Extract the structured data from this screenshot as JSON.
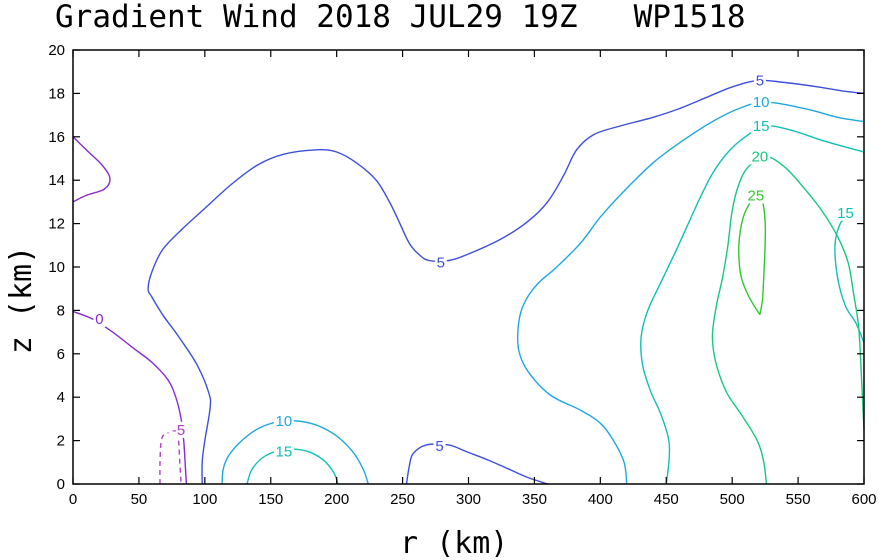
{
  "chart_data": {
    "type": "contour",
    "title": "Gradient Wind 2018 JUL29 19Z   WP1518",
    "xlabel": "r (km)",
    "ylabel": "z (km)",
    "xlim": [
      0,
      600
    ],
    "ylim": [
      0,
      20
    ],
    "xticks": [
      0,
      50,
      100,
      150,
      200,
      250,
      300,
      350,
      400,
      450,
      500,
      550,
      600
    ],
    "yticks": [
      0,
      2,
      4,
      6,
      8,
      10,
      12,
      14,
      16,
      18,
      20
    ],
    "levels": [
      {
        "value": -5,
        "label": "-5",
        "color": "#b040c8",
        "dashed": true
      },
      {
        "value": 0,
        "label": "0",
        "color": "#8a2bd0",
        "dashed": false
      },
      {
        "value": 5,
        "label": "5",
        "color": "#3c50dc",
        "dashed": false
      },
      {
        "value": 10,
        "label": "10",
        "color": "#1ea8e0",
        "dashed": false
      },
      {
        "value": 15,
        "label": "15",
        "color": "#10c0b8",
        "dashed": false
      },
      {
        "value": 20,
        "label": "20",
        "color": "#18c880",
        "dashed": false
      },
      {
        "value": 25,
        "label": "25",
        "color": "#30c830",
        "dashed": false
      }
    ],
    "contours": [
      {
        "level": 0,
        "points": [
          [
            0,
            16
          ],
          [
            10,
            15.4
          ],
          [
            22,
            14.7
          ],
          [
            28,
            14.1
          ],
          [
            24,
            13.6
          ],
          [
            10,
            13.3
          ],
          [
            0,
            13
          ]
        ]
      },
      {
        "level": 0,
        "points": [
          [
            0,
            7.95
          ],
          [
            15,
            7.6
          ],
          [
            30,
            7.0
          ],
          [
            45,
            6.3
          ],
          [
            60,
            5.6
          ],
          [
            72,
            4.8
          ],
          [
            78,
            4.0
          ],
          [
            82,
            3.0
          ],
          [
            84,
            2.0
          ],
          [
            85,
            1.0
          ],
          [
            86,
            0
          ]
        ]
      },
      {
        "level": -5,
        "points": [
          [
            66,
            0
          ],
          [
            66,
            1
          ],
          [
            67,
            2.0
          ],
          [
            70,
            2.3
          ],
          [
            78,
            2.4
          ],
          [
            80,
            2.0
          ],
          [
            81,
            1.0
          ],
          [
            82,
            0
          ]
        ]
      },
      {
        "level": 5,
        "points": [
          [
            98,
            0
          ],
          [
            98,
            1
          ],
          [
            100,
            2.0
          ],
          [
            104,
            3.5
          ],
          [
            103,
            4.2
          ],
          [
            94,
            5.5
          ],
          [
            80,
            6.8
          ],
          [
            68,
            7.8
          ],
          [
            60,
            8.6
          ],
          [
            57,
            9.0
          ],
          [
            60,
            9.8
          ],
          [
            68,
            10.8
          ],
          [
            82,
            11.7
          ],
          [
            100,
            12.7
          ],
          [
            120,
            13.8
          ],
          [
            140,
            14.7
          ],
          [
            160,
            15.2
          ],
          [
            185,
            15.4
          ],
          [
            200,
            15.3
          ],
          [
            215,
            14.8
          ],
          [
            230,
            14.0
          ],
          [
            240,
            13.0
          ],
          [
            248,
            12.0
          ],
          [
            255,
            11.1
          ],
          [
            262,
            10.6
          ],
          [
            270,
            10.3
          ],
          [
            285,
            10.3
          ],
          [
            300,
            10.6
          ],
          [
            325,
            11.3
          ],
          [
            345,
            12.1
          ],
          [
            360,
            13.0
          ],
          [
            372,
            14.2
          ],
          [
            382,
            15.4
          ],
          [
            395,
            16.1
          ],
          [
            415,
            16.5
          ],
          [
            440,
            16.9
          ],
          [
            460,
            17.3
          ],
          [
            480,
            17.8
          ],
          [
            500,
            18.3
          ],
          [
            520,
            18.6
          ],
          [
            540,
            18.5
          ],
          [
            565,
            18.3
          ],
          [
            585,
            18.1
          ],
          [
            600,
            18.0
          ]
        ]
      },
      {
        "level": 5,
        "points": [
          [
            253,
            0
          ],
          [
            255,
            0.8
          ],
          [
            258,
            1.4
          ],
          [
            268,
            1.8
          ],
          [
            285,
            1.8
          ],
          [
            298,
            1.5
          ],
          [
            315,
            1.1
          ],
          [
            330,
            0.7
          ],
          [
            345,
            0.3
          ],
          [
            360,
            0
          ]
        ]
      },
      {
        "level": 10,
        "points": [
          [
            420,
            0
          ],
          [
            418,
            1
          ],
          [
            410,
            2
          ],
          [
            400,
            2.8
          ],
          [
            385,
            3.4
          ],
          [
            362,
            4.1
          ],
          [
            345,
            5.2
          ],
          [
            338,
            6.2
          ],
          [
            338,
            7.4
          ],
          [
            342,
            8.3
          ],
          [
            352,
            9.2
          ],
          [
            367,
            10.0
          ],
          [
            385,
            11.1
          ],
          [
            400,
            12.3
          ],
          [
            418,
            13.5
          ],
          [
            440,
            14.8
          ],
          [
            462,
            15.8
          ],
          [
            485,
            16.7
          ],
          [
            505,
            17.3
          ],
          [
            525,
            17.6
          ],
          [
            555,
            17.3
          ],
          [
            580,
            16.9
          ],
          [
            600,
            16.7
          ]
        ]
      },
      {
        "level": 10,
        "points": [
          [
            113,
            0
          ],
          [
            114,
            0.7
          ],
          [
            118,
            1.3
          ],
          [
            128,
            2.0
          ],
          [
            142,
            2.6
          ],
          [
            160,
            2.9
          ],
          [
            180,
            2.8
          ],
          [
            198,
            2.3
          ],
          [
            212,
            1.5
          ],
          [
            220,
            0.7
          ],
          [
            224,
            0
          ]
        ]
      },
      {
        "level": 15,
        "points": [
          [
            450,
            0
          ],
          [
            452,
            1
          ],
          [
            452,
            2
          ],
          [
            446,
            3.2
          ],
          [
            438,
            4.3
          ],
          [
            432,
            5.5
          ],
          [
            431,
            6.8
          ],
          [
            436,
            8.0
          ],
          [
            446,
            9.3
          ],
          [
            457,
            10.7
          ],
          [
            466,
            11.9
          ],
          [
            475,
            13.1
          ],
          [
            485,
            14.3
          ],
          [
            497,
            15.3
          ],
          [
            510,
            16.0
          ],
          [
            525,
            16.5
          ],
          [
            545,
            16.3
          ],
          [
            570,
            15.8
          ],
          [
            600,
            15.3
          ]
        ]
      },
      {
        "level": 15,
        "points": [
          [
            132,
            0
          ],
          [
            136,
            0.7
          ],
          [
            146,
            1.3
          ],
          [
            162,
            1.6
          ],
          [
            178,
            1.5
          ],
          [
            190,
            1.1
          ],
          [
            198,
            0.5
          ],
          [
            201,
            0
          ]
        ]
      },
      {
        "level": 15,
        "points": [
          [
            600,
            6.5
          ],
          [
            594,
            7.4
          ],
          [
            586,
            8.2
          ],
          [
            580,
            9.5
          ],
          [
            578,
            11.0
          ],
          [
            582,
            12.0
          ],
          [
            588,
            12.3
          ]
        ]
      },
      {
        "level": 20,
        "points": [
          [
            526,
            0
          ],
          [
            524,
            1
          ],
          [
            519,
            2
          ],
          [
            507,
            3.2
          ],
          [
            496,
            4.2
          ],
          [
            488,
            5.5
          ],
          [
            485,
            6.8
          ],
          [
            488,
            8.2
          ],
          [
            493,
            9.6
          ],
          [
            497,
            11.1
          ],
          [
            500,
            12.6
          ],
          [
            505,
            13.8
          ],
          [
            512,
            14.6
          ],
          [
            525,
            15.1
          ],
          [
            540,
            14.6
          ],
          [
            555,
            13.6
          ],
          [
            568,
            12.6
          ],
          [
            580,
            11.4
          ],
          [
            588,
            10.2
          ],
          [
            592,
            8.8
          ],
          [
            596,
            7.2
          ],
          [
            598,
            5.0
          ],
          [
            600,
            2.5
          ]
        ]
      },
      {
        "level": 25,
        "points": [
          [
            521,
            7.8
          ],
          [
            513,
            8.6
          ],
          [
            507,
            9.5
          ],
          [
            505,
            10.6
          ],
          [
            506,
            11.6
          ],
          [
            509,
            12.4
          ],
          [
            514,
            13.0
          ],
          [
            518,
            13.3
          ],
          [
            523,
            13.0
          ],
          [
            525,
            12.1
          ],
          [
            525,
            11.0
          ],
          [
            524,
            9.6
          ],
          [
            523,
            8.5
          ],
          [
            521,
            7.8
          ]
        ]
      }
    ],
    "labels": [
      {
        "text": "-5",
        "level": -5,
        "x": 80,
        "y": 2.5
      },
      {
        "text": "0",
        "level": 0,
        "x": 20,
        "y": 7.6
      },
      {
        "text": "5",
        "level": 5,
        "x": 279,
        "y": 10.2
      },
      {
        "text": "5",
        "level": 5,
        "x": 278,
        "y": 1.75
      },
      {
        "text": "5",
        "level": 5,
        "x": 521,
        "y": 18.6
      },
      {
        "text": "10",
        "level": 10,
        "x": 160,
        "y": 2.9
      },
      {
        "text": "10",
        "level": 10,
        "x": 522,
        "y": 17.6
      },
      {
        "text": "15",
        "level": 15,
        "x": 160,
        "y": 1.5
      },
      {
        "text": "15",
        "level": 15,
        "x": 522,
        "y": 16.5
      },
      {
        "text": "15",
        "level": 15,
        "x": 586,
        "y": 12.5
      },
      {
        "text": "20",
        "level": 20,
        "x": 521,
        "y": 15.1
      },
      {
        "text": "25",
        "level": 25,
        "x": 518,
        "y": 13.3
      }
    ]
  }
}
